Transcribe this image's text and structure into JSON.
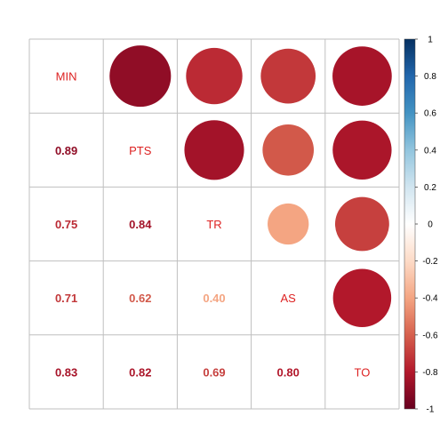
{
  "chart_data": {
    "type": "heatmap",
    "variables": [
      "MIN",
      "PTS",
      "TR",
      "AS",
      "TO"
    ],
    "matrix": [
      [
        1.0,
        0.89,
        0.75,
        0.71,
        0.83
      ],
      [
        0.89,
        1.0,
        0.84,
        0.62,
        0.82
      ],
      [
        0.75,
        0.84,
        1.0,
        0.4,
        0.69
      ],
      [
        0.71,
        0.62,
        0.4,
        1.0,
        0.8
      ],
      [
        0.83,
        0.82,
        0.69,
        0.8,
        1.0
      ]
    ],
    "lower_labels": [
      {
        "row": 1,
        "col": 0,
        "text": "0.89"
      },
      {
        "row": 2,
        "col": 0,
        "text": "0.75"
      },
      {
        "row": 2,
        "col": 1,
        "text": "0.84"
      },
      {
        "row": 3,
        "col": 0,
        "text": "0.71"
      },
      {
        "row": 3,
        "col": 1,
        "text": "0.62"
      },
      {
        "row": 3,
        "col": 2,
        "text": "0.40"
      },
      {
        "row": 4,
        "col": 0,
        "text": "0.83"
      },
      {
        "row": 4,
        "col": 1,
        "text": "0.82"
      },
      {
        "row": 4,
        "col": 2,
        "text": "0.69"
      },
      {
        "row": 4,
        "col": 3,
        "text": "0.80"
      }
    ],
    "colorbar": {
      "ticks": [
        "1",
        "0.8",
        "0.6",
        "0.4",
        "0.2",
        "0",
        "-0.2",
        "-0.4",
        "-0.6",
        "-0.8",
        "-1"
      ],
      "range": [
        -1,
        1
      ],
      "colors": [
        "#67001F",
        "#B2182B",
        "#D6604D",
        "#F4A582",
        "#FDDBC7",
        "#FFFFFF",
        "#D1E5F0",
        "#92C5DE",
        "#4393C3",
        "#2166AC",
        "#053061"
      ]
    },
    "diag_color": "#dd2222",
    "upper_glyph": "circle"
  }
}
